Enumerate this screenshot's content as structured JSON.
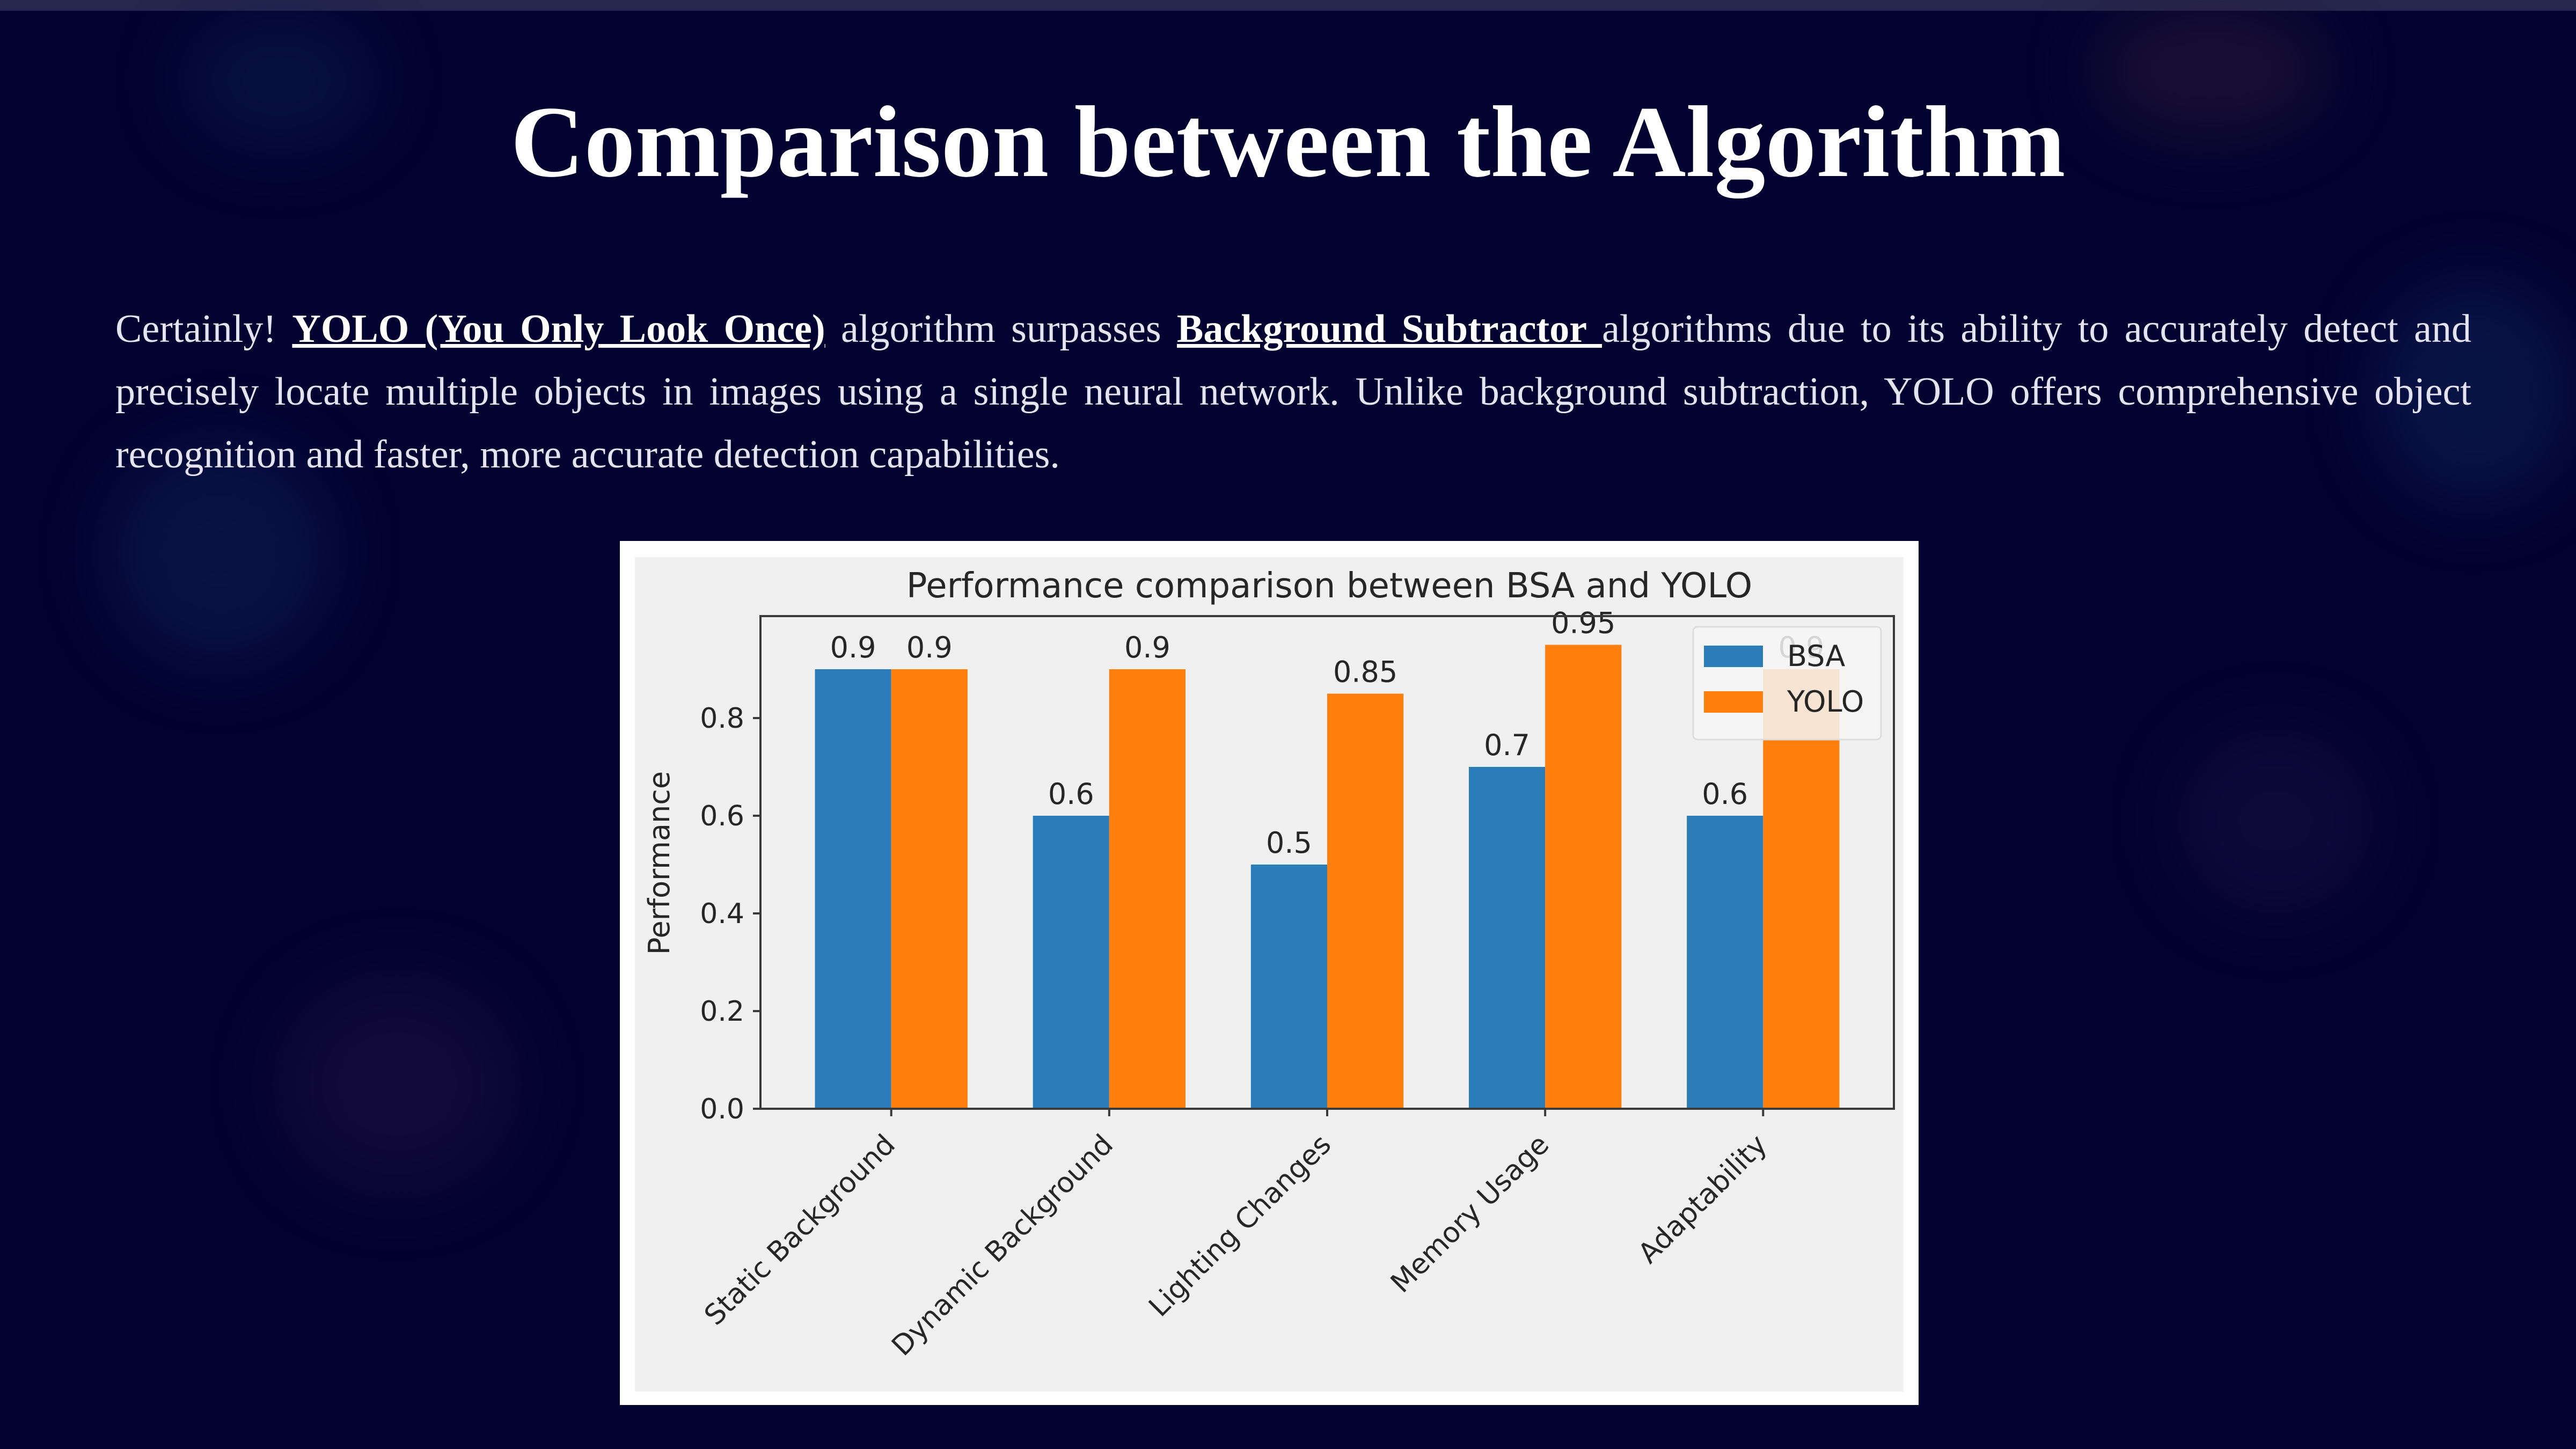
{
  "slide": {
    "title": "Comparison between the Algorithm",
    "para_intro": "Certainly! ",
    "link_yolo": "YOLO (You Only Look Once)",
    "para_mid": " algorithm surpasses ",
    "link_bs": "Background Subtractor ",
    "para_rest": "algorithms due to its ability to accurately detect and precisely locate multiple objects in images using a single neural network. Unlike background subtraction, YOLO offers comprehensive object recognition and faster, more accurate detection capabilities."
  },
  "colors": {
    "background": "#020230",
    "title": "#ffffff",
    "bsa": "#2a7db8",
    "yolo": "#ff7f0e"
  },
  "chart_data": {
    "type": "bar",
    "title": "Performance comparison between BSA and YOLO",
    "xlabel": "",
    "ylabel": "Performance",
    "categories": [
      "Static Background",
      "Dynamic Background",
      "Lighting Changes",
      "Memory Usage",
      "Adaptability"
    ],
    "series": [
      {
        "name": "BSA",
        "values": [
          0.9,
          0.6,
          0.5,
          0.7,
          0.6
        ],
        "color": "#2a7db8"
      },
      {
        "name": "YOLO",
        "values": [
          0.9,
          0.9,
          0.85,
          0.95,
          0.9
        ],
        "color": "#ff7f0e"
      }
    ],
    "data_labels": [
      [
        "0.9",
        "0.6",
        "0.5",
        "0.7",
        "0.6"
      ],
      [
        "0.9",
        "0.9",
        "0.85",
        "0.95",
        "0.9"
      ]
    ],
    "ylim": [
      0,
      1.0
    ],
    "yticks": [
      0.0,
      0.2,
      0.4,
      0.6,
      0.8
    ],
    "ytick_labels": [
      "0.0",
      "0.2",
      "0.4",
      "0.6",
      "0.8"
    ],
    "grid": false,
    "legend": "top-right"
  }
}
